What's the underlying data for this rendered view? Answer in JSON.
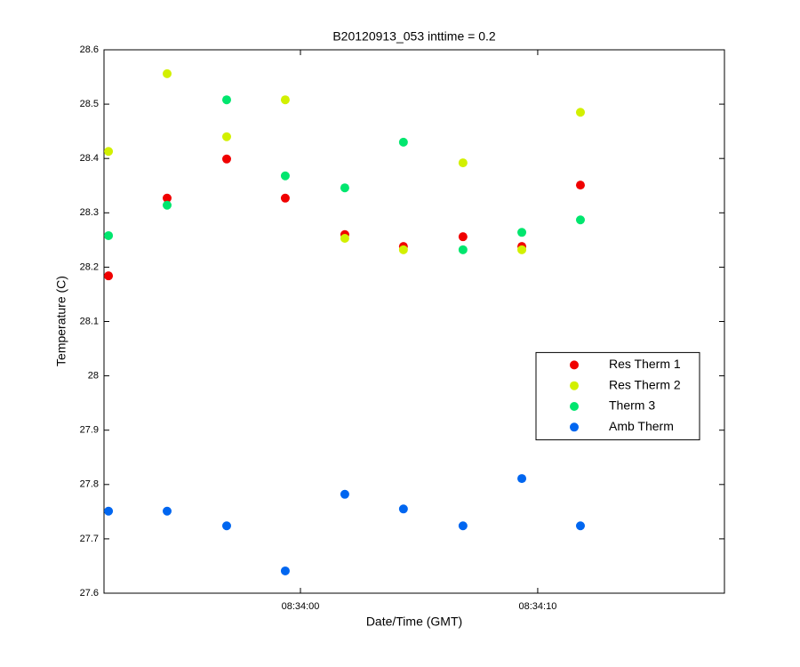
{
  "chart_data": {
    "type": "scatter",
    "title": "B20120913_053 inttime = 0.2",
    "x_label": "Date/Time (GMT)",
    "y_label": "Temperature (C)",
    "x": [
      -8.09,
      -5.62,
      -3.11,
      -0.64,
      1.87,
      4.34,
      6.85,
      9.33,
      11.8
    ],
    "series": [
      {
        "name": "Res Therm 1",
        "color": "#f00000",
        "values": [
          28.184,
          28.327,
          28.399,
          28.327,
          28.26,
          28.238,
          28.256,
          28.238,
          28.351
        ]
      },
      {
        "name": "Res Therm 2",
        "color": "#d2f000",
        "values": [
          28.413,
          28.556,
          28.44,
          28.508,
          28.253,
          28.232,
          28.392,
          28.232,
          28.485
        ]
      },
      {
        "name": "Therm 3",
        "color": "#00e66e",
        "values": [
          28.258,
          28.314,
          28.508,
          28.368,
          28.346,
          28.43,
          28.232,
          28.264,
          28.287
        ]
      },
      {
        "name": "Amb Therm",
        "color": "#0066f0",
        "values": [
          27.751,
          27.751,
          27.724,
          27.641,
          27.782,
          27.755,
          27.724,
          27.811,
          27.724
        ]
      }
    ],
    "xlim": [
      -8.28,
      17.87
    ],
    "xticks": [
      {
        "value": 0,
        "label": "08:34:00"
      },
      {
        "value": 10,
        "label": "08:34:10"
      }
    ],
    "ylim": [
      27.6,
      28.6
    ],
    "yticks": [
      27.6,
      27.7,
      27.8,
      27.9,
      28,
      28.1,
      28.2,
      28.3,
      28.4,
      28.5,
      28.6
    ],
    "grid": false,
    "legend_position": "east"
  }
}
